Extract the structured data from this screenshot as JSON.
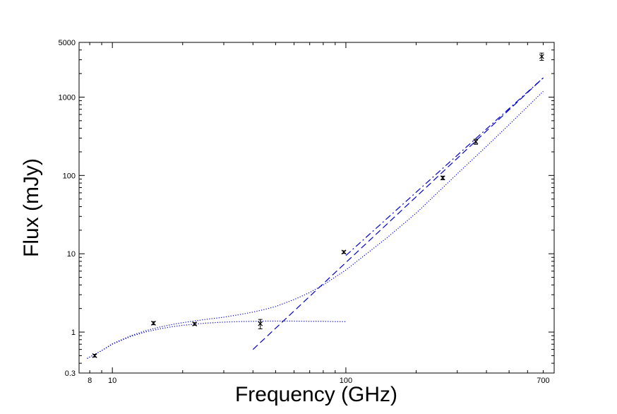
{
  "chart_data": {
    "type": "scatter",
    "title": "",
    "xlabel": "Frequency (GHz)",
    "ylabel": "Flux (mJy)",
    "x_scale": "log",
    "y_scale": "log",
    "xlim": [
      7.2,
      780
    ],
    "ylim": [
      0.3,
      5000
    ],
    "grid": false,
    "x_ticks": [
      {
        "value": 8,
        "label": "8"
      },
      {
        "value": 10,
        "label": "10"
      },
      {
        "value": 100,
        "label": "100"
      },
      {
        "value": 700,
        "label": "700"
      }
    ],
    "y_ticks": [
      {
        "value": 0.3,
        "label": "0.3"
      },
      {
        "value": 1,
        "label": "1"
      },
      {
        "value": 10,
        "label": "10"
      },
      {
        "value": 100,
        "label": "100"
      },
      {
        "value": 1000,
        "label": "1000"
      },
      {
        "value": 5000,
        "label": "5000"
      }
    ],
    "points": [
      {
        "x": 8.4,
        "y": 0.5,
        "yerr_low": 0.48,
        "yerr_high": 0.52
      },
      {
        "x": 15,
        "y": 1.3,
        "yerr_low": 1.24,
        "yerr_high": 1.36
      },
      {
        "x": 22.5,
        "y": 1.27,
        "yerr_low": 1.22,
        "yerr_high": 1.32
      },
      {
        "x": 43,
        "y": 1.28,
        "yerr_low": 1.1,
        "yerr_high": 1.45
      },
      {
        "x": 98,
        "y": 10.5,
        "yerr_low": 10.1,
        "yerr_high": 10.9
      },
      {
        "x": 260,
        "y": 93,
        "yerr_low": 88,
        "yerr_high": 98
      },
      {
        "x": 360,
        "y": 270,
        "yerr_low": 250,
        "yerr_high": 290
      },
      {
        "x": 690,
        "y": 3300,
        "yerr_low": 2950,
        "yerr_high": 3650
      }
    ],
    "series": [
      {
        "style": "dotted",
        "color": "#0000cc",
        "x": [
          7.8,
          8.4,
          9,
          10,
          12,
          14,
          16,
          18,
          20,
          25,
          30,
          35,
          40,
          45,
          50,
          60,
          70,
          80,
          90,
          100
        ],
        "y": [
          0.46,
          0.52,
          0.58,
          0.7,
          0.88,
          1.01,
          1.1,
          1.17,
          1.22,
          1.3,
          1.34,
          1.36,
          1.37,
          1.38,
          1.38,
          1.38,
          1.37,
          1.37,
          1.36,
          1.36
        ]
      },
      {
        "style": "dotted",
        "color": "#0000cc",
        "x": [
          7.8,
          8.4,
          9,
          10,
          12,
          14,
          16,
          18,
          20,
          25,
          30,
          35,
          40,
          45,
          50,
          60,
          70,
          80,
          100,
          150,
          200,
          300,
          400,
          500,
          700
        ],
        "y": [
          0.46,
          0.52,
          0.58,
          0.71,
          0.9,
          1.05,
          1.16,
          1.25,
          1.32,
          1.45,
          1.55,
          1.67,
          1.8,
          1.95,
          2.12,
          2.6,
          3.2,
          4.0,
          6.2,
          16,
          33,
          105,
          235,
          445,
          1185
        ]
      },
      {
        "style": "dashed",
        "color": "#0000cc",
        "x": [
          40,
          700
        ],
        "y": [
          0.6,
          1760
        ]
      },
      {
        "style": "dashdot",
        "color": "#0000cc",
        "x": [
          100,
          700
        ],
        "y": [
          9.5,
          1760
        ]
      }
    ]
  }
}
